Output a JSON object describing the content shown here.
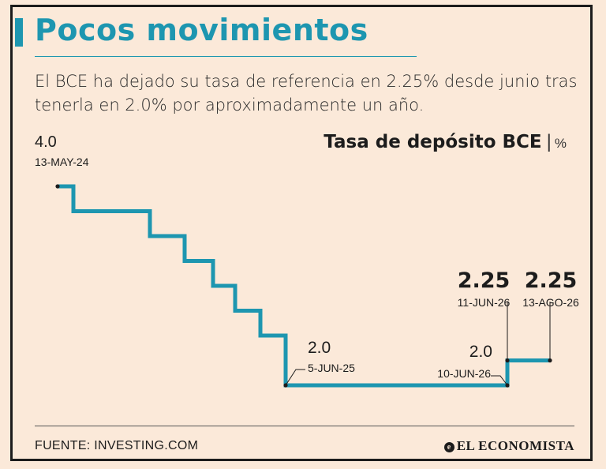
{
  "header": {
    "title": "Pocos movimientos",
    "subtitle": "El BCE ha dejado su tasa de referencia en 2.25% desde junio tras tenerla en 2.0% por aproximadamente un año."
  },
  "chart_data": {
    "type": "line",
    "step": true,
    "title": "Tasa de depósito BCE",
    "unit": "%",
    "color": "#1d96b0",
    "start_value": 4.0,
    "decrements": 8,
    "decrement_size": 0.25,
    "annotations": [
      {
        "value": "4.0",
        "date": "13-MAY-24"
      },
      {
        "value": "2.0",
        "date": "5-JUN-25"
      },
      {
        "value": "2.0",
        "date": "10-JUN-26"
      },
      {
        "value": "2.25",
        "date": "11-JUN-26"
      },
      {
        "value": "2.25",
        "date": "13-AGO-26"
      }
    ]
  },
  "footer": {
    "source": "FUENTE: INVESTING.COM",
    "brand": "EL ECONOMISTA",
    "brand_icon": "e-logo-icon"
  }
}
